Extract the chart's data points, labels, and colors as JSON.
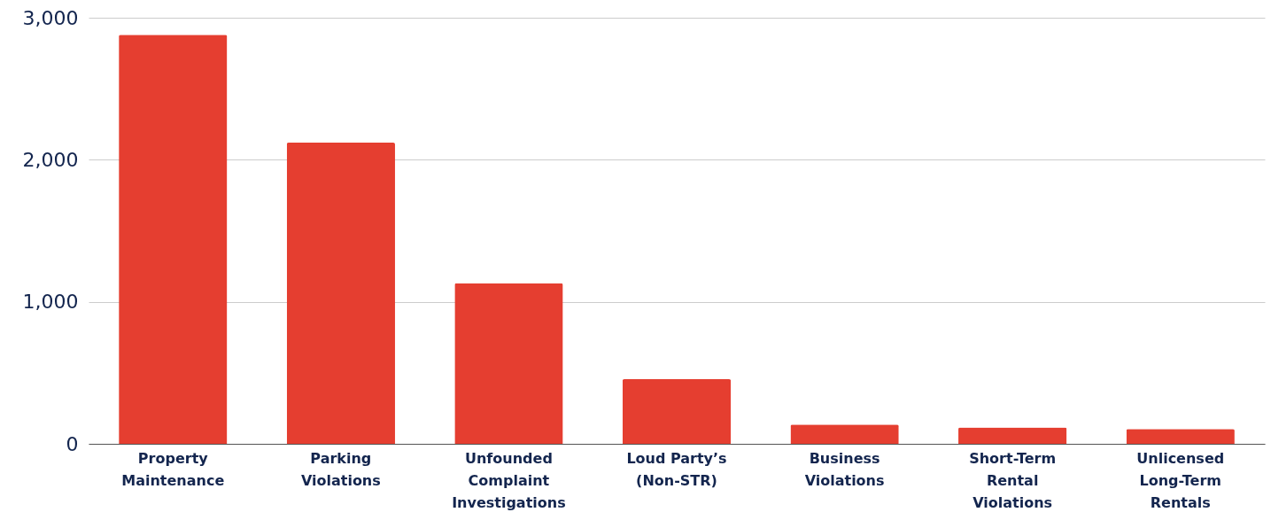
{
  "chart_data": {
    "type": "bar",
    "categories": [
      "Property Maintenance",
      "Parking Violations",
      "Unfounded Complaint Investigations",
      "Loud Party’s (Non-STR)",
      "Business Violations",
      "Short-Term Rental Violations",
      "Unlicensed Long-Term Rentals"
    ],
    "values": [
      2880,
      2120,
      1130,
      455,
      135,
      115,
      105
    ],
    "color": "#e53e30",
    "ylim": [
      0,
      3000
    ],
    "yticks": [
      {
        "value": 0,
        "label": "0"
      },
      {
        "value": 1000,
        "label": "1,000"
      },
      {
        "value": 2000,
        "label": "2,000"
      },
      {
        "value": 3000,
        "label": "3,000"
      }
    ],
    "grid": "y"
  }
}
